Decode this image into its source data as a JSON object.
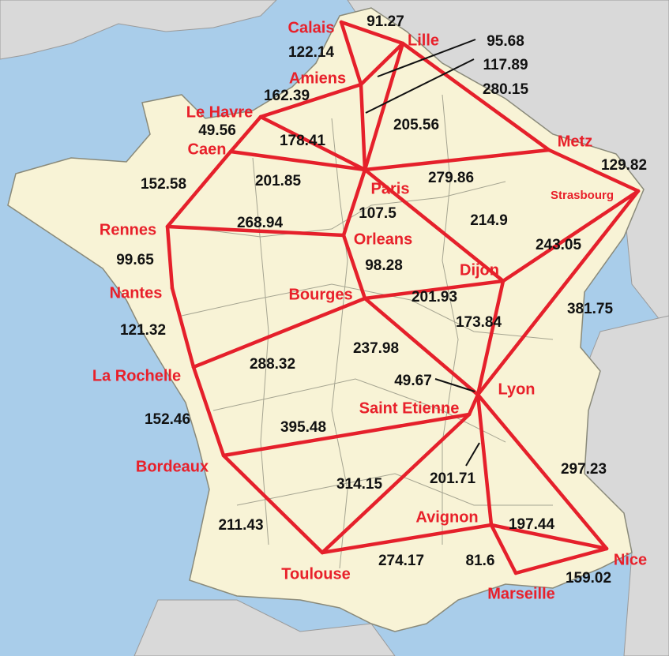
{
  "colors": {
    "sea": "#a9cdea",
    "foreign_land": "#d9d9d9",
    "france_land": "#f8f3d6",
    "region_border": "#8a8a7a",
    "route": "#e5202b",
    "city_label": "#e8202a",
    "distance_label": "#111111"
  },
  "cities": [
    {
      "id": "calais",
      "name": "Calais"
    },
    {
      "id": "lille",
      "name": "Lille"
    },
    {
      "id": "amiens",
      "name": "Amiens"
    },
    {
      "id": "lehavre",
      "name": "Le Havre"
    },
    {
      "id": "caen",
      "name": "Caen"
    },
    {
      "id": "paris",
      "name": "Paris"
    },
    {
      "id": "metz",
      "name": "Metz"
    },
    {
      "id": "strasbourg",
      "name": "Strasbourg"
    },
    {
      "id": "rennes",
      "name": "Rennes"
    },
    {
      "id": "orleans",
      "name": "Orleans"
    },
    {
      "id": "dijon",
      "name": "Dijon"
    },
    {
      "id": "nantes",
      "name": "Nantes"
    },
    {
      "id": "bourges",
      "name": "Bourges"
    },
    {
      "id": "larochelle",
      "name": "La Rochelle"
    },
    {
      "id": "lyon",
      "name": "Lyon"
    },
    {
      "id": "saintetienne",
      "name": "Saint Etienne"
    },
    {
      "id": "bordeaux",
      "name": "Bordeaux"
    },
    {
      "id": "avignon",
      "name": "Avignon"
    },
    {
      "id": "nice",
      "name": "Nice"
    },
    {
      "id": "toulouse",
      "name": "Toulouse"
    },
    {
      "id": "marseille",
      "name": "Marseille"
    }
  ],
  "routes": [
    {
      "id": "calais-lille",
      "from": "calais",
      "to": "lille",
      "distance": "91.27"
    },
    {
      "id": "calais-amiens",
      "from": "calais",
      "to": "amiens",
      "distance": "122.14"
    },
    {
      "id": "lille-amiens",
      "from": "lille",
      "to": "amiens",
      "distance": "95.68"
    },
    {
      "id": "amiens-paris",
      "from": "amiens",
      "to": "paris",
      "distance": "117.89"
    },
    {
      "id": "lille-metz",
      "from": "lille",
      "to": "metz",
      "distance": "280.15"
    },
    {
      "id": "amiens-lehavre",
      "from": "amiens",
      "to": "lehavre",
      "distance": "162.39"
    },
    {
      "id": "lille-paris",
      "from": "lille",
      "to": "paris",
      "distance": "205.56"
    },
    {
      "id": "lehavre-caen",
      "from": "lehavre",
      "to": "caen",
      "distance": "49.56"
    },
    {
      "id": "lehavre-paris",
      "from": "lehavre",
      "to": "paris",
      "distance": "178.41"
    },
    {
      "id": "metz-strasbourg",
      "from": "metz",
      "to": "strasbourg",
      "distance": "129.82"
    },
    {
      "id": "caen-rennes",
      "from": "caen",
      "to": "rennes",
      "distance": "152.58"
    },
    {
      "id": "caen-paris",
      "from": "caen",
      "to": "paris",
      "distance": "201.85"
    },
    {
      "id": "paris-metz",
      "from": "paris",
      "to": "metz",
      "distance": "279.86"
    },
    {
      "id": "paris-orleans",
      "from": "paris",
      "to": "orleans",
      "distance": "107.5"
    },
    {
      "id": "paris-dijon",
      "from": "paris",
      "to": "dijon",
      "distance": "214.9"
    },
    {
      "id": "rennes-orleans",
      "from": "rennes",
      "to": "orleans",
      "distance": "268.94"
    },
    {
      "id": "strasbourg-dijon",
      "from": "strasbourg",
      "to": "dijon",
      "distance": "243.05"
    },
    {
      "id": "rennes-nantes",
      "from": "rennes",
      "to": "nantes",
      "distance": "99.65"
    },
    {
      "id": "orleans-bourges",
      "from": "orleans",
      "to": "bourges",
      "distance": "98.28"
    },
    {
      "id": "bourges-dijon",
      "from": "bourges",
      "to": "dijon",
      "distance": "201.93"
    },
    {
      "id": "strasbourg-lyon",
      "from": "strasbourg",
      "to": "lyon",
      "distance": "381.75"
    },
    {
      "id": "dijon-lyon",
      "from": "dijon",
      "to": "lyon",
      "distance": "173.84"
    },
    {
      "id": "nantes-larochelle",
      "from": "nantes",
      "to": "larochelle",
      "distance": "121.32"
    },
    {
      "id": "bourges-lyon",
      "from": "bourges",
      "to": "lyon",
      "distance": "237.98"
    },
    {
      "id": "larochelle-bourges",
      "from": "larochelle",
      "to": "bourges",
      "distance": "288.32"
    },
    {
      "id": "lyon-saintetienne",
      "from": "lyon",
      "to": "saintetienne",
      "distance": "49.67"
    },
    {
      "id": "larochelle-bordeaux",
      "from": "larochelle",
      "to": "bordeaux",
      "distance": "152.46"
    },
    {
      "id": "bordeaux-saintetienne",
      "from": "bordeaux",
      "to": "saintetienne",
      "distance": "395.48"
    },
    {
      "id": "lyon-nice",
      "from": "lyon",
      "to": "nice",
      "distance": "297.23"
    },
    {
      "id": "toulouse-saintetienne",
      "from": "toulouse",
      "to": "saintetienne",
      "distance": "314.15"
    },
    {
      "id": "lyon-avignon",
      "from": "lyon",
      "to": "avignon",
      "distance": "201.71"
    },
    {
      "id": "bordeaux-toulouse",
      "from": "bordeaux",
      "to": "toulouse",
      "distance": "211.43"
    },
    {
      "id": "avignon-nice",
      "from": "avignon",
      "to": "nice",
      "distance": "197.44"
    },
    {
      "id": "toulouse-avignon",
      "from": "toulouse",
      "to": "avignon",
      "distance": "274.17"
    },
    {
      "id": "avignon-marseille",
      "from": "avignon",
      "to": "marseille",
      "distance": "81.6"
    },
    {
      "id": "marseille-nice",
      "from": "marseille",
      "to": "nice",
      "distance": "159.02"
    }
  ]
}
